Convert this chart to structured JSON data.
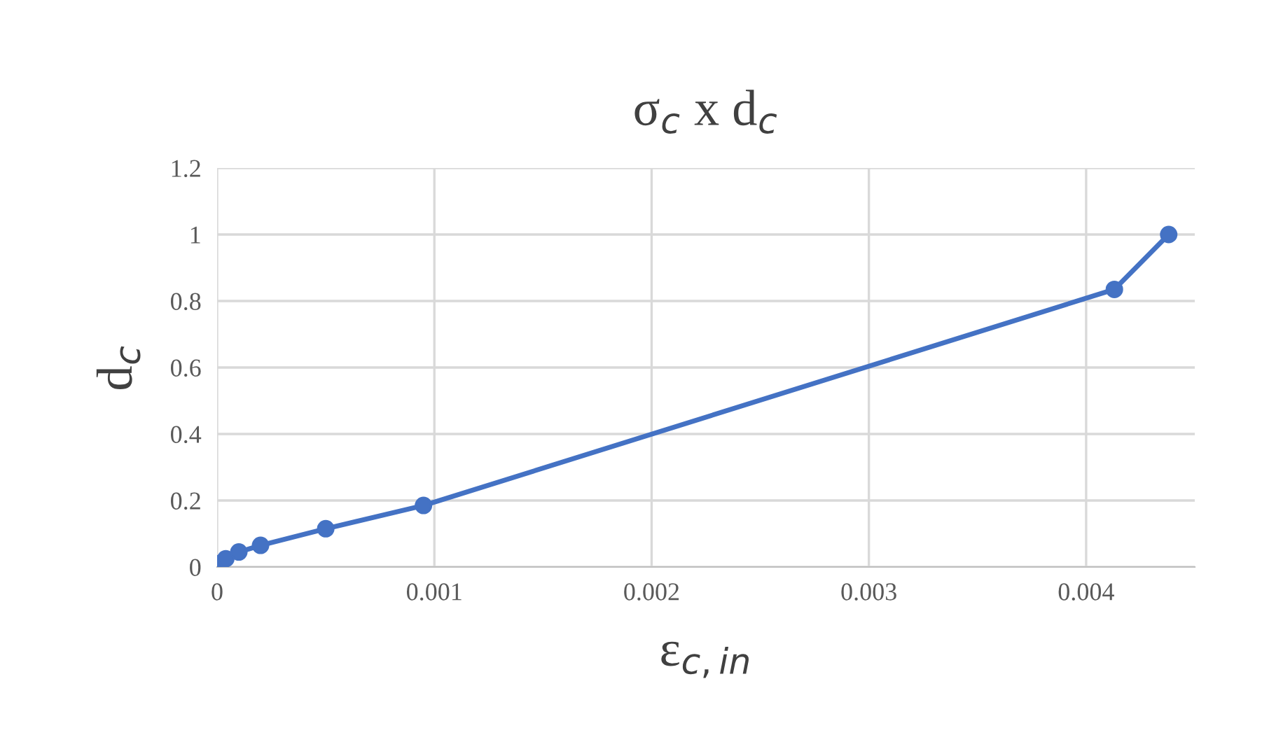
{
  "chart_data": {
    "type": "line",
    "title": "σ$_{c}$ x d$_{c}$",
    "xlabel": "ε$_{c,in}$",
    "ylabel": "d$_{c}$",
    "x": [
      0,
      1e-05,
      4e-05,
      0.0001,
      0.0002,
      0.0005,
      0.00095,
      0.00413,
      0.00438
    ],
    "series": [
      {
        "color": "#4472c4",
        "values": [
          0,
          0.01,
          0.025,
          0.045,
          0.065,
          0.115,
          0.185,
          0.835,
          1.0
        ]
      }
    ],
    "xlim": [
      0,
      0.0045
    ],
    "xticks": [
      0,
      0.001,
      0.002,
      0.003,
      0.004
    ],
    "ylim": [
      0,
      1.2
    ],
    "yticks": [
      0,
      0.2,
      0.4,
      0.6,
      0.8,
      1,
      1.2
    ],
    "grid": true,
    "marker": "circle",
    "line_style": "solid"
  }
}
